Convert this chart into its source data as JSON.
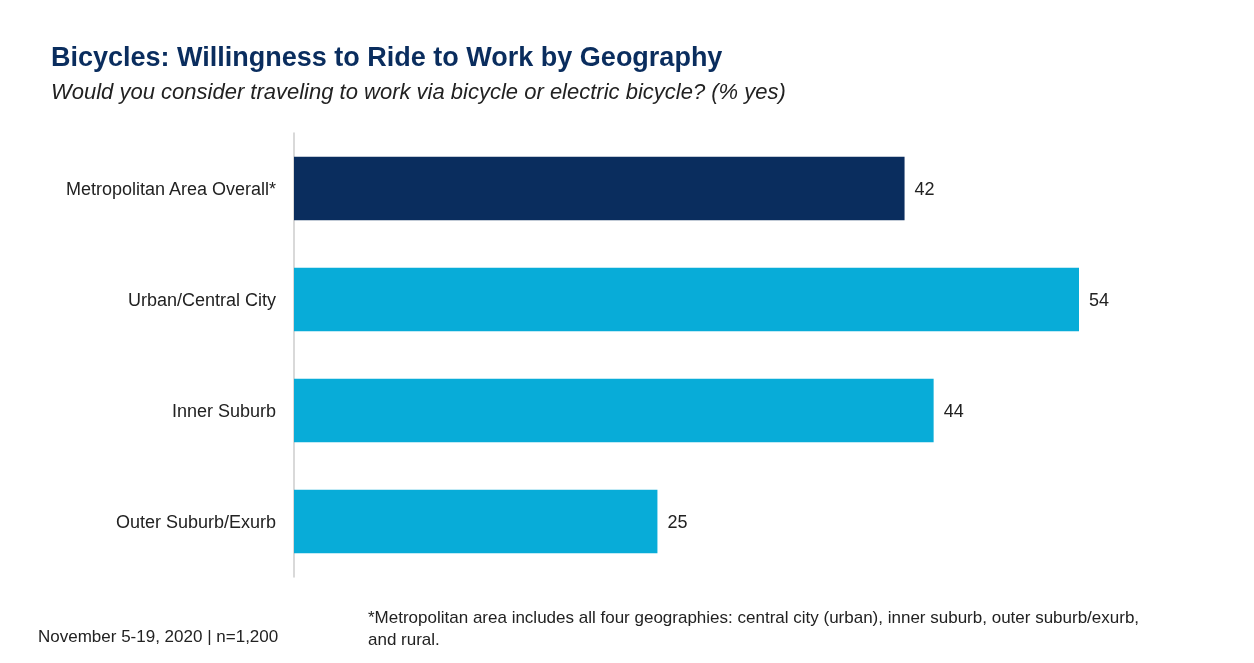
{
  "chart_data": {
    "type": "bar",
    "orientation": "horizontal",
    "title": "Bicycles: Willingness to Ride to Work by Geography",
    "subtitle": "Would you consider traveling to work via bicycle or electric bicycle? (% yes)",
    "categories": [
      "Metropolitan Area Overall*",
      "Urban/Central City",
      "Inner Suburb",
      "Outer Suburb/Exurb"
    ],
    "values": [
      42,
      54,
      44,
      25
    ],
    "colors": [
      "#0a2d5e",
      "#08acd8",
      "#08acd8",
      "#08acd8"
    ],
    "data_labels": true,
    "annotations": [
      "November 5-19, 2020 | n=1,200",
      "*Metropolitan area includes all four geographies: central city (urban), inner suburb, outer suburb/exurb, and rural."
    ]
  }
}
